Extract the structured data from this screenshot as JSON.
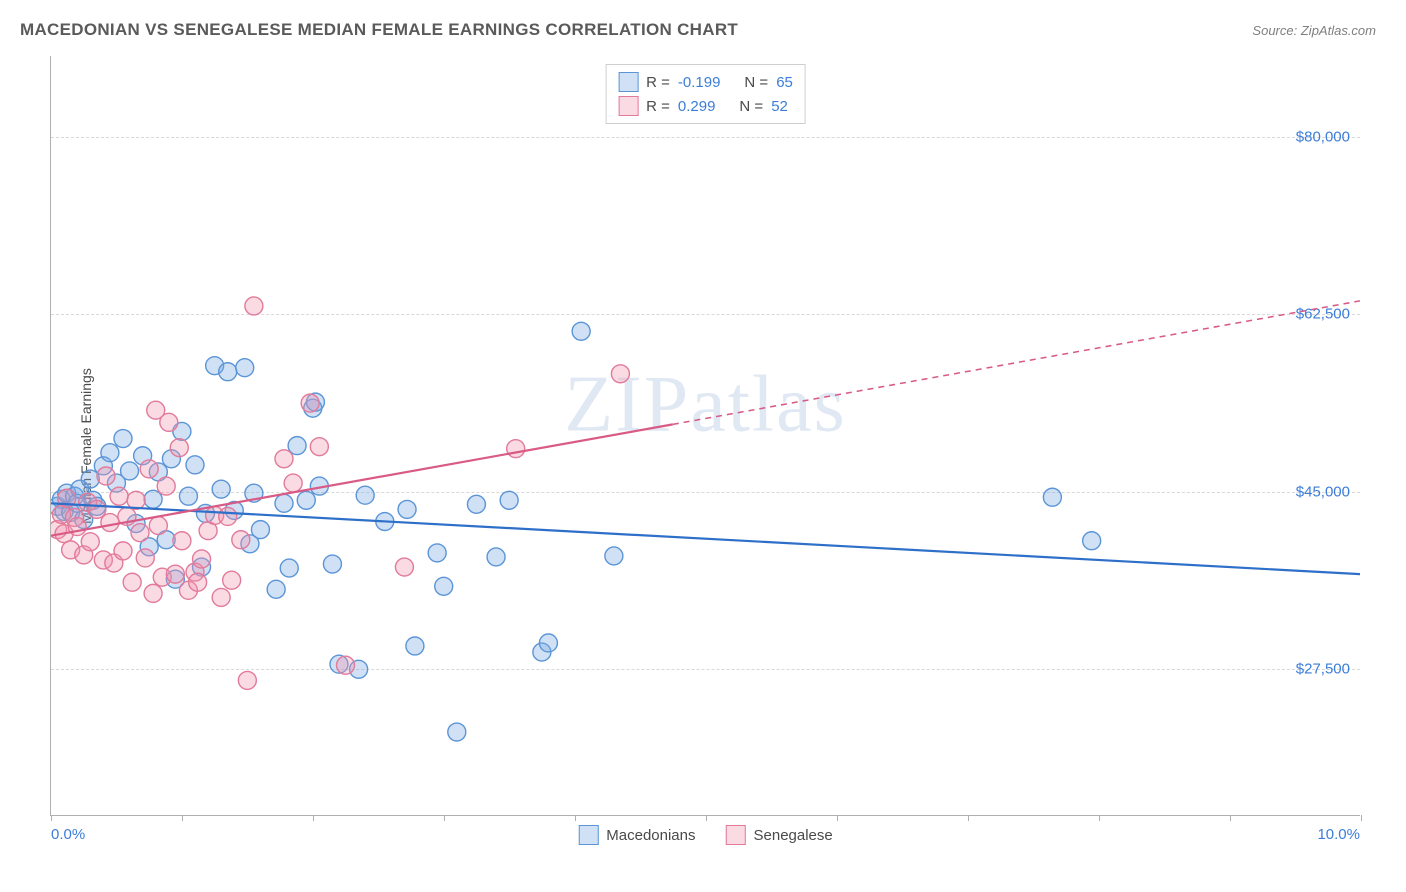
{
  "title": "MACEDONIAN VS SENEGALESE MEDIAN FEMALE EARNINGS CORRELATION CHART",
  "source_label": "Source:",
  "source_name": "ZipAtlas.com",
  "ylabel": "Median Female Earnings",
  "watermark": "ZIPatlas",
  "chart": {
    "type": "scatter",
    "xlim": [
      0.0,
      10.0
    ],
    "ylim": [
      13000,
      88000
    ],
    "x_unit": "%",
    "y_prefix": "$",
    "xtick_positions": [
      0,
      1,
      2,
      3,
      4,
      5,
      6,
      7,
      8,
      9,
      10
    ],
    "xtick_labels_shown": {
      "0": "0.0%",
      "10": "10.0%"
    },
    "ytick_positions": [
      27500,
      45000,
      62500,
      80000
    ],
    "ytick_labels": [
      "$27,500",
      "$45,000",
      "$62,500",
      "$80,000"
    ],
    "grid_color": "#d8d8d8",
    "axis_color": "#b0b0b0",
    "background_color": "#ffffff",
    "marker_radius": 9,
    "marker_stroke_width": 1.4,
    "trend_line_width": 2.2,
    "series": [
      {
        "name": "Macedonians",
        "color_fill": "rgba(120,170,230,0.35)",
        "color_stroke": "#5b95d6",
        "trend_color": "#2d6fc9",
        "R": -0.199,
        "N": 65,
        "trend_start": [
          0.0,
          43800
        ],
        "trend_solid_end": [
          10.0,
          36800
        ],
        "trend_dashed_end": null,
        "points": [
          [
            0.05,
            43500
          ],
          [
            0.08,
            44200
          ],
          [
            0.1,
            43000
          ],
          [
            0.12,
            44800
          ],
          [
            0.15,
            42900
          ],
          [
            0.18,
            44500
          ],
          [
            0.2,
            43800
          ],
          [
            0.22,
            45200
          ],
          [
            0.25,
            42200
          ],
          [
            0.3,
            46200
          ],
          [
            0.32,
            44100
          ],
          [
            0.35,
            43500
          ],
          [
            0.4,
            47500
          ],
          [
            0.45,
            48800
          ],
          [
            0.5,
            45800
          ],
          [
            0.55,
            50200
          ],
          [
            0.6,
            47000
          ],
          [
            0.65,
            41800
          ],
          [
            0.7,
            48500
          ],
          [
            0.75,
            39500
          ],
          [
            0.78,
            44200
          ],
          [
            0.82,
            46900
          ],
          [
            0.88,
            40200
          ],
          [
            0.92,
            48200
          ],
          [
            0.95,
            36300
          ],
          [
            1.0,
            50900
          ],
          [
            1.05,
            44500
          ],
          [
            1.1,
            47600
          ],
          [
            1.15,
            37500
          ],
          [
            1.18,
            42800
          ],
          [
            1.25,
            57400
          ],
          [
            1.3,
            45200
          ],
          [
            1.35,
            56800
          ],
          [
            1.4,
            43100
          ],
          [
            1.48,
            57200
          ],
          [
            1.52,
            39800
          ],
          [
            1.55,
            44800
          ],
          [
            1.6,
            41200
          ],
          [
            1.72,
            35300
          ],
          [
            1.78,
            43800
          ],
          [
            1.82,
            37400
          ],
          [
            1.88,
            49500
          ],
          [
            1.95,
            44100
          ],
          [
            2.0,
            53200
          ],
          [
            2.02,
            53800
          ],
          [
            2.05,
            45500
          ],
          [
            2.15,
            37800
          ],
          [
            2.2,
            27900
          ],
          [
            2.35,
            27400
          ],
          [
            2.4,
            44600
          ],
          [
            2.55,
            42000
          ],
          [
            2.72,
            43200
          ],
          [
            2.78,
            29700
          ],
          [
            2.95,
            38900
          ],
          [
            3.0,
            35600
          ],
          [
            3.1,
            21200
          ],
          [
            3.25,
            43700
          ],
          [
            3.4,
            38500
          ],
          [
            3.5,
            44100
          ],
          [
            3.75,
            29100
          ],
          [
            3.8,
            30000
          ],
          [
            4.05,
            60800
          ],
          [
            4.3,
            38600
          ],
          [
            7.65,
            44400
          ],
          [
            7.95,
            40100
          ]
        ]
      },
      {
        "name": "Senegalese",
        "color_fill": "rgba(240,150,175,0.35)",
        "color_stroke": "#e27a9a",
        "trend_color": "#d85a85",
        "R": 0.299,
        "N": 52,
        "trend_start": [
          0.0,
          40600
        ],
        "trend_solid_end": [
          4.75,
          51600
        ],
        "trend_dashed_end": [
          10.0,
          63800
        ],
        "points": [
          [
            0.05,
            41200
          ],
          [
            0.08,
            42700
          ],
          [
            0.1,
            40800
          ],
          [
            0.12,
            44300
          ],
          [
            0.15,
            39200
          ],
          [
            0.18,
            42400
          ],
          [
            0.2,
            41500
          ],
          [
            0.25,
            38700
          ],
          [
            0.28,
            43900
          ],
          [
            0.3,
            40000
          ],
          [
            0.35,
            43200
          ],
          [
            0.4,
            38200
          ],
          [
            0.42,
            46500
          ],
          [
            0.45,
            41900
          ],
          [
            0.48,
            37900
          ],
          [
            0.52,
            44500
          ],
          [
            0.55,
            39100
          ],
          [
            0.58,
            42500
          ],
          [
            0.62,
            36000
          ],
          [
            0.65,
            44100
          ],
          [
            0.68,
            40900
          ],
          [
            0.72,
            38400
          ],
          [
            0.75,
            47200
          ],
          [
            0.78,
            34900
          ],
          [
            0.8,
            53000
          ],
          [
            0.82,
            41600
          ],
          [
            0.85,
            36500
          ],
          [
            0.88,
            45500
          ],
          [
            0.9,
            51800
          ],
          [
            0.95,
            36800
          ],
          [
            0.98,
            49300
          ],
          [
            1.0,
            40100
          ],
          [
            1.05,
            35200
          ],
          [
            1.1,
            37000
          ],
          [
            1.12,
            36000
          ],
          [
            1.15,
            38300
          ],
          [
            1.2,
            41100
          ],
          [
            1.25,
            42600
          ],
          [
            1.3,
            34500
          ],
          [
            1.35,
            42500
          ],
          [
            1.38,
            36200
          ],
          [
            1.45,
            40200
          ],
          [
            1.5,
            26300
          ],
          [
            1.55,
            63300
          ],
          [
            1.78,
            48200
          ],
          [
            1.85,
            45800
          ],
          [
            1.98,
            53700
          ],
          [
            2.05,
            49400
          ],
          [
            2.25,
            27800
          ],
          [
            2.7,
            37500
          ],
          [
            3.55,
            49200
          ],
          [
            4.35,
            56600
          ]
        ]
      }
    ]
  },
  "legend_top": {
    "R_label": "R =",
    "N_label": "N ="
  },
  "legend_bottom": [
    "Macedonians",
    "Senegalese"
  ]
}
